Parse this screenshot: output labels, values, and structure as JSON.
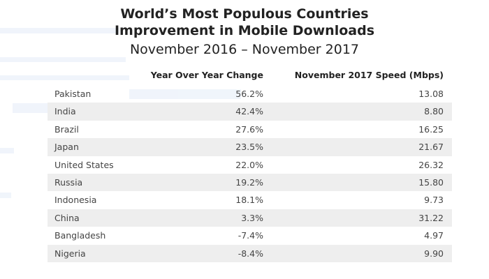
{
  "title_line1": "World’s Most Populous Countries",
  "title_line2": "Improvement in Mobile Downloads",
  "subtitle": "November 2016 – November 2017",
  "chart_data": {
    "type": "table",
    "columns": [
      "",
      "Year Over Year Change",
      "November 2017 Speed (Mbps)"
    ],
    "rows": [
      {
        "country": "Pakistan",
        "yoy": "56.2%",
        "speed": "13.08"
      },
      {
        "country": "India",
        "yoy": "42.4%",
        "speed": "8.80"
      },
      {
        "country": "Brazil",
        "yoy": "27.6%",
        "speed": "16.25"
      },
      {
        "country": "Japan",
        "yoy": "23.5%",
        "speed": "21.67"
      },
      {
        "country": "United States",
        "yoy": "22.0%",
        "speed": "26.32"
      },
      {
        "country": "Russia",
        "yoy": "19.2%",
        "speed": "15.80"
      },
      {
        "country": "Indonesia",
        "yoy": "18.1%",
        "speed": "9.73"
      },
      {
        "country": "China",
        "yoy": "3.3%",
        "speed": "31.22"
      },
      {
        "country": "Bangladesh",
        "yoy": "-7.4%",
        "speed": "4.97"
      },
      {
        "country": "Nigeria",
        "yoy": "-8.4%",
        "speed": "9.90"
      }
    ],
    "yoy_change_values": [
      56.2,
      42.4,
      27.6,
      23.5,
      22.0,
      19.2,
      18.1,
      3.3,
      -7.4,
      -8.4
    ],
    "speed_mbps_values": [
      13.08,
      8.8,
      16.25,
      21.67,
      26.32,
      15.8,
      9.73,
      31.22,
      4.97,
      9.9
    ]
  },
  "colors": {
    "shaded_row": "#eeeeee",
    "text": "#444444",
    "heading": "#222222"
  }
}
